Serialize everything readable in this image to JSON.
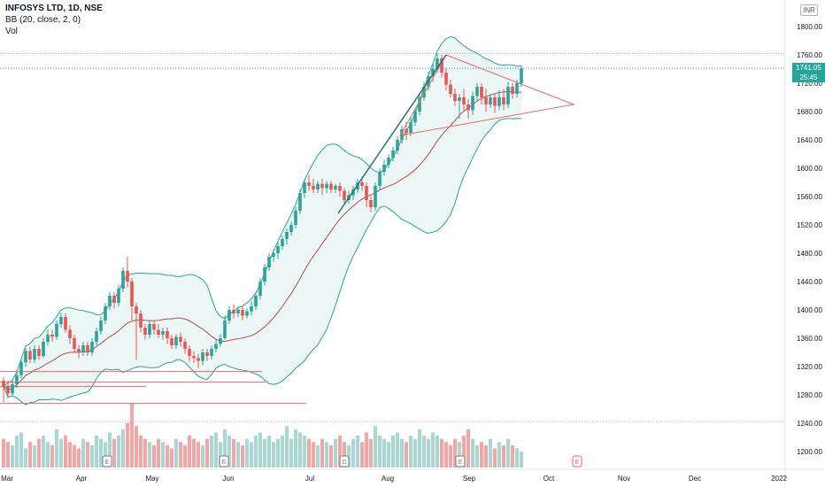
{
  "header": {
    "symbol_line": "INFOSYS LTD, 1D, NSE",
    "indicator_line": "BB (20, close, 2, 0)",
    "volume_line": "Vol",
    "currency": "INR"
  },
  "price_label": {
    "price": "1741.05",
    "countdown": "25:45"
  },
  "colors": {
    "up": "#26a69a",
    "down": "#ef5350",
    "basis": "#b0514e",
    "bands": "#26a69a",
    "band_fill": "#ecf6f5",
    "annotation": "#f0666a",
    "trend": "#2a6f7a"
  },
  "chart_data": {
    "type": "candlestick",
    "title": "INFOSYS LTD, 1D, NSE",
    "indicators": [
      "BB (20, close, 2, 0)",
      "Vol"
    ],
    "y_axis": {
      "side": "right",
      "ticks": [
        1200,
        1240,
        1280,
        1320,
        1360,
        1400,
        1440,
        1480,
        1520,
        1560,
        1600,
        1640,
        1680,
        1720,
        1760,
        1800
      ],
      "ylim": [
        1185,
        1835
      ]
    },
    "x_axis": {
      "ticks": [
        "Mar",
        "Apr",
        "May",
        "Jun",
        "Jul",
        "Aug",
        "Sep",
        "Oct",
        "Nov",
        "Dec",
        "2022"
      ]
    },
    "last_price": 1741.05,
    "candles": [
      [
        1300,
        1292,
        1270,
        1305
      ],
      [
        1292,
        1282,
        1275,
        1300
      ],
      [
        1282,
        1295,
        1278,
        1300
      ],
      [
        1295,
        1308,
        1290,
        1312
      ],
      [
        1308,
        1326,
        1303,
        1330
      ],
      [
        1326,
        1342,
        1320,
        1346
      ],
      [
        1342,
        1330,
        1325,
        1348
      ],
      [
        1330,
        1345,
        1325,
        1350
      ],
      [
        1345,
        1335,
        1330,
        1350
      ],
      [
        1335,
        1355,
        1332,
        1360
      ],
      [
        1355,
        1365,
        1350,
        1372
      ],
      [
        1365,
        1362,
        1355,
        1372
      ],
      [
        1362,
        1380,
        1358,
        1385
      ],
      [
        1380,
        1390,
        1375,
        1396
      ],
      [
        1390,
        1372,
        1368,
        1395
      ],
      [
        1372,
        1360,
        1352,
        1378
      ],
      [
        1360,
        1345,
        1340,
        1365
      ],
      [
        1345,
        1340,
        1332,
        1350
      ],
      [
        1340,
        1350,
        1335,
        1355
      ],
      [
        1350,
        1340,
        1335,
        1355
      ],
      [
        1340,
        1355,
        1335,
        1360
      ],
      [
        1355,
        1370,
        1350,
        1375
      ],
      [
        1370,
        1385,
        1365,
        1390
      ],
      [
        1385,
        1405,
        1380,
        1410
      ],
      [
        1405,
        1420,
        1400,
        1425
      ],
      [
        1420,
        1410,
        1402,
        1425
      ],
      [
        1410,
        1430,
        1405,
        1435
      ],
      [
        1430,
        1455,
        1425,
        1460
      ],
      [
        1455,
        1440,
        1432,
        1475
      ],
      [
        1440,
        1405,
        1385,
        1445
      ],
      [
        1405,
        1395,
        1330,
        1410
      ],
      [
        1395,
        1375,
        1368,
        1400
      ],
      [
        1375,
        1365,
        1358,
        1380
      ],
      [
        1365,
        1380,
        1360,
        1385
      ],
      [
        1380,
        1372,
        1365,
        1385
      ],
      [
        1372,
        1365,
        1360,
        1380
      ],
      [
        1365,
        1370,
        1358,
        1375
      ],
      [
        1370,
        1360,
        1352,
        1375
      ],
      [
        1360,
        1350,
        1345,
        1365
      ],
      [
        1350,
        1362,
        1345,
        1366
      ],
      [
        1362,
        1355,
        1348,
        1368
      ],
      [
        1355,
        1345,
        1338,
        1360
      ],
      [
        1345,
        1335,
        1328,
        1350
      ],
      [
        1335,
        1332,
        1325,
        1342
      ],
      [
        1332,
        1328,
        1318,
        1338
      ],
      [
        1328,
        1340,
        1322,
        1345
      ],
      [
        1340,
        1335,
        1328,
        1345
      ],
      [
        1335,
        1345,
        1330,
        1350
      ],
      [
        1345,
        1352,
        1340,
        1358
      ],
      [
        1352,
        1360,
        1348,
        1366
      ],
      [
        1360,
        1385,
        1358,
        1392
      ],
      [
        1385,
        1400,
        1380,
        1405
      ],
      [
        1400,
        1395,
        1388,
        1408
      ],
      [
        1395,
        1400,
        1390,
        1405
      ],
      [
        1400,
        1392,
        1385,
        1405
      ],
      [
        1392,
        1398,
        1388,
        1402
      ],
      [
        1398,
        1405,
        1392,
        1412
      ],
      [
        1405,
        1420,
        1400,
        1425
      ],
      [
        1420,
        1440,
        1415,
        1445
      ],
      [
        1440,
        1460,
        1435,
        1465
      ],
      [
        1460,
        1475,
        1455,
        1480
      ],
      [
        1475,
        1480,
        1468,
        1485
      ],
      [
        1480,
        1490,
        1472,
        1495
      ],
      [
        1490,
        1500,
        1485,
        1505
      ],
      [
        1500,
        1510,
        1492,
        1515
      ],
      [
        1510,
        1520,
        1505,
        1525
      ],
      [
        1520,
        1540,
        1515,
        1545
      ],
      [
        1540,
        1565,
        1535,
        1570
      ],
      [
        1565,
        1580,
        1558,
        1585
      ],
      [
        1580,
        1575,
        1568,
        1590
      ],
      [
        1575,
        1570,
        1565,
        1585
      ],
      [
        1570,
        1578,
        1565,
        1582
      ],
      [
        1578,
        1572,
        1562,
        1585
      ],
      [
        1572,
        1578,
        1565,
        1582
      ],
      [
        1578,
        1570,
        1565,
        1582
      ],
      [
        1570,
        1575,
        1565,
        1578
      ],
      [
        1575,
        1568,
        1560,
        1580
      ],
      [
        1568,
        1555,
        1550,
        1572
      ],
      [
        1555,
        1562,
        1550,
        1568
      ],
      [
        1562,
        1570,
        1555,
        1575
      ],
      [
        1570,
        1580,
        1565,
        1585
      ],
      [
        1580,
        1575,
        1568,
        1588
      ],
      [
        1575,
        1555,
        1545,
        1580
      ],
      [
        1555,
        1545,
        1538,
        1560
      ],
      [
        1545,
        1575,
        1540,
        1580
      ],
      [
        1575,
        1595,
        1570,
        1600
      ],
      [
        1595,
        1605,
        1590,
        1612
      ],
      [
        1605,
        1615,
        1600,
        1620
      ],
      [
        1615,
        1625,
        1610,
        1630
      ],
      [
        1625,
        1640,
        1620,
        1645
      ],
      [
        1640,
        1655,
        1635,
        1660
      ],
      [
        1655,
        1650,
        1640,
        1665
      ],
      [
        1650,
        1665,
        1645,
        1672
      ],
      [
        1665,
        1680,
        1660,
        1685
      ],
      [
        1680,
        1700,
        1675,
        1705
      ],
      [
        1700,
        1715,
        1695,
        1722
      ],
      [
        1715,
        1730,
        1710,
        1736
      ],
      [
        1730,
        1740,
        1722,
        1748
      ],
      [
        1740,
        1755,
        1735,
        1762
      ],
      [
        1755,
        1735,
        1728,
        1760
      ],
      [
        1735,
        1718,
        1710,
        1742
      ],
      [
        1718,
        1705,
        1700,
        1725
      ],
      [
        1705,
        1695,
        1688,
        1712
      ],
      [
        1695,
        1700,
        1670,
        1705
      ],
      [
        1700,
        1690,
        1680,
        1712
      ],
      [
        1690,
        1682,
        1670,
        1698
      ],
      [
        1682,
        1702,
        1675,
        1708
      ],
      [
        1702,
        1715,
        1695,
        1720
      ],
      [
        1715,
        1700,
        1690,
        1720
      ],
      [
        1700,
        1690,
        1680,
        1712
      ],
      [
        1690,
        1700,
        1685,
        1705
      ],
      [
        1700,
        1688,
        1678,
        1705
      ],
      [
        1688,
        1700,
        1682,
        1710
      ],
      [
        1700,
        1690,
        1682,
        1712
      ],
      [
        1690,
        1715,
        1685,
        1722
      ],
      [
        1715,
        1705,
        1698,
        1720
      ],
      [
        1705,
        1720,
        1700,
        1725
      ],
      [
        1720,
        1741,
        1715,
        1745
      ]
    ],
    "volume": [
      0.45,
      0.4,
      0.35,
      0.5,
      0.55,
      0.3,
      0.4,
      0.35,
      0.45,
      0.5,
      0.4,
      0.35,
      0.6,
      0.45,
      0.5,
      0.4,
      0.35,
      0.3,
      0.45,
      0.4,
      0.35,
      0.5,
      0.45,
      0.4,
      0.55,
      0.45,
      0.5,
      0.6,
      0.7,
      1.0,
      0.65,
      0.5,
      0.45,
      0.4,
      0.35,
      0.45,
      0.4,
      0.35,
      0.3,
      0.45,
      0.4,
      0.35,
      0.5,
      0.45,
      0.4,
      0.35,
      0.45,
      0.5,
      0.55,
      0.4,
      0.6,
      0.5,
      0.45,
      0.4,
      0.35,
      0.45,
      0.4,
      0.5,
      0.55,
      0.45,
      0.5,
      0.4,
      0.45,
      0.5,
      0.65,
      0.45,
      0.6,
      0.55,
      0.5,
      0.45,
      0.4,
      0.35,
      0.45,
      0.4,
      0.35,
      0.45,
      0.5,
      0.4,
      0.35,
      0.45,
      0.5,
      0.4,
      0.55,
      0.45,
      0.65,
      0.5,
      0.45,
      0.4,
      0.5,
      0.55,
      0.45,
      0.4,
      0.5,
      0.45,
      0.6,
      0.5,
      0.45,
      0.55,
      0.5,
      0.45,
      0.4,
      0.35,
      0.45,
      0.4,
      0.5,
      0.6,
      0.45,
      0.35,
      0.4,
      0.35,
      0.45,
      0.3,
      0.4,
      0.35,
      0.45,
      0.35,
      0.3,
      0.25
    ],
    "horizontal_levels": [
      1313,
      1298,
      1292,
      1268
    ],
    "events": [
      "E",
      "E",
      "D",
      "E",
      "E"
    ]
  }
}
